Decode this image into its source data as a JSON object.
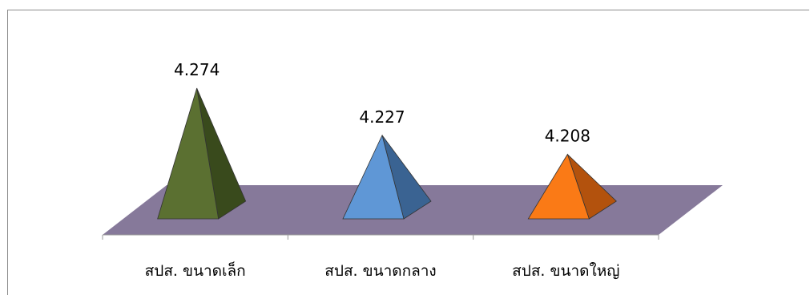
{
  "chart_data": {
    "type": "bar",
    "style": "3d-pyramid",
    "title": "",
    "xlabel": "",
    "ylabel": "",
    "categories": [
      "สปส. ขนาดเล็ก",
      "สปส. ขนาดกลาง",
      "สปส. ขนาดใหญ่"
    ],
    "values": [
      4.274,
      4.227,
      4.208
    ],
    "value_labels": [
      "4.274",
      "4.227",
      "4.208"
    ],
    "colors": {
      "front": [
        "#5b7031",
        "#5f97d6",
        "#fa7a16"
      ],
      "side": [
        "#394a1c",
        "#3a6392",
        "#b3520d"
      ]
    },
    "floor_color": "#86799a",
    "grid": false,
    "legend": "none"
  }
}
